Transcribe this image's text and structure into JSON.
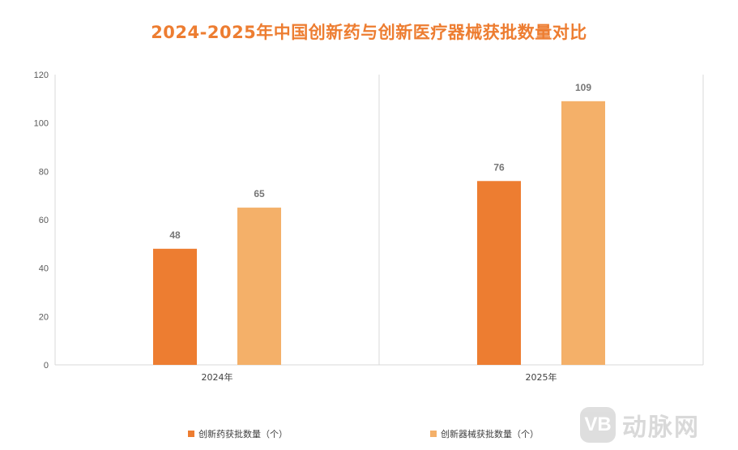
{
  "title": "2024-2025年中国创新药与创新医疗器械获批数量对比",
  "chart_data": {
    "type": "bar",
    "title": "2024-2025年中国创新药与创新医疗器械获批数量对比",
    "categories": [
      "2024年",
      "2025年"
    ],
    "series": [
      {
        "name": "创新药获批数量（个）",
        "values": [
          48,
          76
        ],
        "color": "#ED7D31"
      },
      {
        "name": "创新器械获批数量（个）",
        "values": [
          65,
          109
        ],
        "color": "#F4B069"
      }
    ],
    "ylim": [
      0,
      120
    ],
    "yticks": [
      0,
      20,
      40,
      60,
      80,
      100,
      120
    ],
    "grid": false,
    "legend": "bottom"
  },
  "watermark": {
    "logo": "VB",
    "text": "动脉网"
  }
}
